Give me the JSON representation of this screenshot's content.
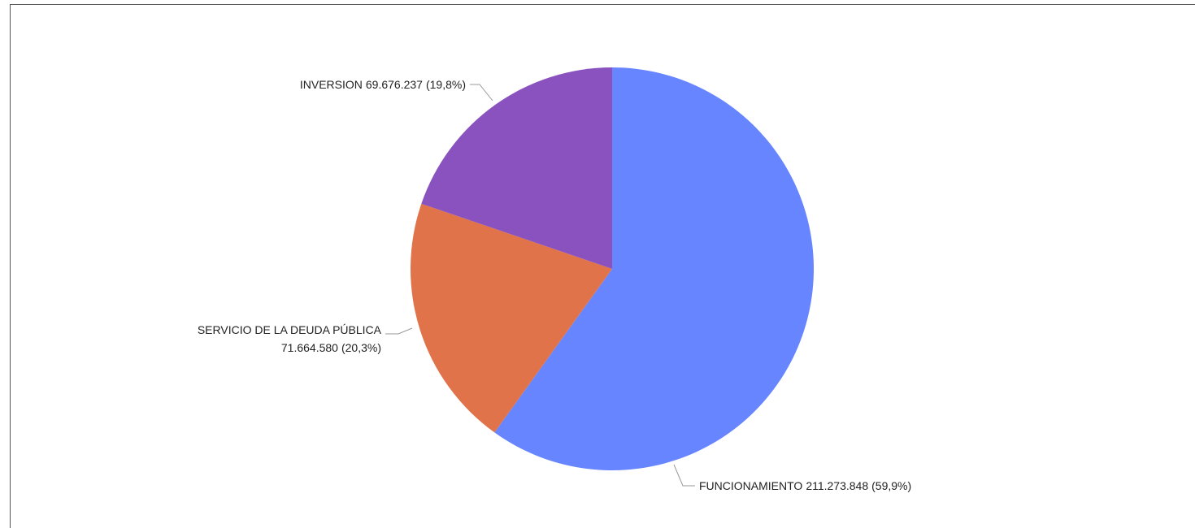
{
  "chart_data": {
    "type": "pie",
    "categories": [
      "FUNCIONAMIENTO",
      "SERVICIO DE LA DEUDA PÚBLICA",
      "INVERSION"
    ],
    "values": [
      211273848,
      71664580,
      69676237
    ],
    "value_labels": [
      "211.273.848",
      "71.664.580",
      "69.676.237"
    ],
    "percents": [
      59.9,
      20.3,
      19.8
    ],
    "percent_labels": [
      "(59,9%)",
      "(20,3%)",
      "(19,8%)"
    ],
    "colors": [
      "#6685ff",
      "#e0734a",
      "#8a52be"
    ]
  }
}
